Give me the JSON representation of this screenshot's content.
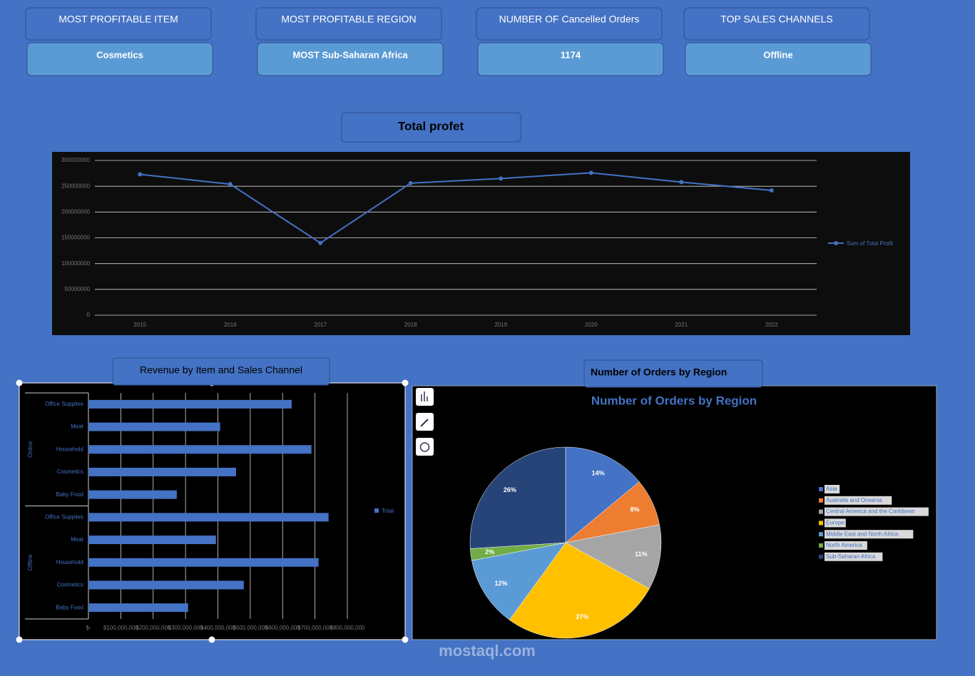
{
  "cards": [
    {
      "title": "MOST PROFITABLE ITEM",
      "value": "Cosmetics"
    },
    {
      "title": "MOST PROFITABLE REGION",
      "value": "MOST Sub-Saharan Africa"
    },
    {
      "title": "NUMBER OF Cancelled Orders",
      "value": "1174"
    },
    {
      "title": "TOP SALES CHANNELS",
      "value": "Offline"
    }
  ],
  "watermark": "mostaql.com",
  "chart_data": [
    {
      "type": "line",
      "title": "Total profet",
      "categories": [
        "2015",
        "2016",
        "2017",
        "2018",
        "2019",
        "2020",
        "2021",
        "2022"
      ],
      "series": [
        {
          "name": "Sum of Total Profit",
          "color": "#4472c4",
          "values": [
            273000000,
            254000000,
            140000000,
            256000000,
            265000000,
            276000000,
            258000000,
            242000000
          ]
        }
      ],
      "ylim": [
        0,
        300000000
      ],
      "yticks": [
        0,
        50000000,
        100000000,
        150000000,
        200000000,
        250000000,
        300000000
      ],
      "grid": true,
      "legend": "right"
    },
    {
      "type": "hbar",
      "title": "Revenue by Item and Sales Channel",
      "groups": [
        {
          "name": "Online",
          "categories": [
            "Office Supplies",
            "Meat",
            "Household",
            "Cosmetics",
            "Baby Food"
          ]
        },
        {
          "name": "Offline",
          "categories": [
            "Office Supplies",
            "Meat",
            "Household",
            "Cosmetics",
            "Baby Food"
          ]
        }
      ],
      "series": [
        {
          "name": "Total",
          "color": "#4472c4",
          "values": [
            628000000,
            407000000,
            689000000,
            456000000,
            273000000,
            742000000,
            394000000,
            711000000,
            480000000,
            308000000
          ]
        }
      ],
      "xlim": [
        0,
        800000000
      ],
      "xticks": [
        {
          "value": 0,
          "label": "$-"
        },
        {
          "value": 100000000,
          "label": "$100,000,000"
        },
        {
          "value": 200000000,
          "label": "$200,000,000"
        },
        {
          "value": 300000000,
          "label": "$300,000,000"
        },
        {
          "value": 400000000,
          "label": "$400,000,000"
        },
        {
          "value": 500000000,
          "label": "$500,000,000"
        },
        {
          "value": 600000000,
          "label": "$600,000,000"
        },
        {
          "value": 700000000,
          "label": "$700,000,000"
        },
        {
          "value": 800000000,
          "label": "$800,000,000"
        }
      ],
      "grid": true,
      "legend": "right"
    },
    {
      "type": "pie",
      "heading": "Number of Orders by Region",
      "title": "Number of Orders by Region",
      "categories": [
        "Asia",
        "Australia and Oceania",
        "Central America and the Caribbean",
        "Europe",
        "Middle East and North Africa",
        "North America",
        "Sub-Saharan Africa"
      ],
      "values": [
        14,
        8,
        11,
        27,
        12,
        2,
        26
      ],
      "value_labels": [
        "14%",
        "8%",
        "11%",
        "27%",
        "12%",
        "2%",
        "26%"
      ],
      "colors": [
        "#4472c4",
        "#ed7d31",
        "#a5a5a5",
        "#ffc000",
        "#5b9bd5",
        "#70ad47",
        "#264478"
      ],
      "legend": "right"
    }
  ]
}
